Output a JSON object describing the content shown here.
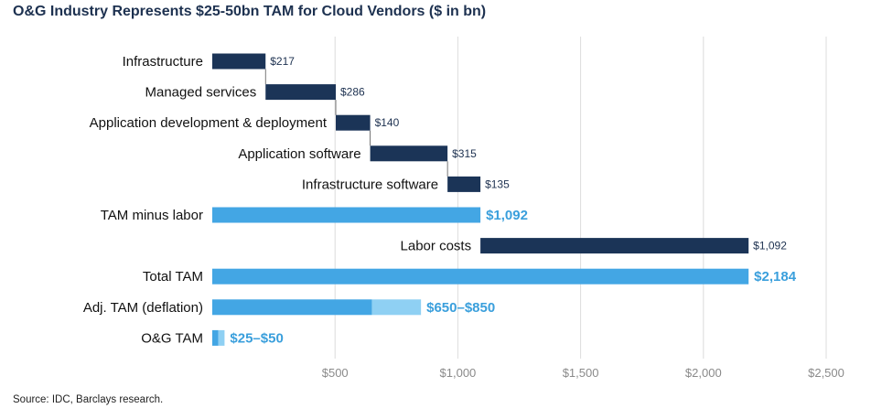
{
  "title": "O&G Industry Represents $25-50bn TAM for Cloud Vendors ($ in bn)",
  "source": "Source: IDC, Barclays research.",
  "colors": {
    "dark": "#1b3457",
    "light": "#43a6e4",
    "lighter": "#8fd0f3",
    "grid": "#dcdcdc"
  },
  "chart_data": {
    "type": "bar",
    "subtype": "waterfall-horizontal",
    "title": "O&G Industry Represents $25-50bn TAM for Cloud Vendors ($ in bn)",
    "xlabel": "",
    "ylabel": "",
    "xlim": [
      0,
      2500
    ],
    "grid": true,
    "x_ticks": [
      {
        "value": 500,
        "label": "$500"
      },
      {
        "value": 1000,
        "label": "$1,000"
      },
      {
        "value": 1500,
        "label": "$1,500"
      },
      {
        "value": 2000,
        "label": "$2,000"
      },
      {
        "value": 2500,
        "label": "$2,500"
      }
    ],
    "categories": [
      {
        "label": "Infrastructure",
        "start": 0,
        "end": 217,
        "color": "dark",
        "value_label": "$217",
        "label_style": "small"
      },
      {
        "label": "Managed services",
        "start": 217,
        "end": 503,
        "color": "dark",
        "value_label": "$286",
        "label_style": "small"
      },
      {
        "label": "Application development & deployment",
        "start": 503,
        "end": 643,
        "color": "dark",
        "value_label": "$140",
        "label_style": "small"
      },
      {
        "label": "Application software",
        "start": 643,
        "end": 958,
        "color": "dark",
        "value_label": "$315",
        "label_style": "small"
      },
      {
        "label": "Infrastructure software",
        "start": 958,
        "end": 1092,
        "color": "dark",
        "value_label": "$135",
        "label_style": "small"
      },
      {
        "label": "TAM minus labor",
        "start": 0,
        "end": 1092,
        "color": "light",
        "value_label": "$1,092",
        "label_style": "big"
      },
      {
        "label": "Labor costs",
        "start": 1092,
        "end": 2184,
        "color": "dark",
        "value_label": "$1,092",
        "label_style": "small"
      },
      {
        "label": "Total TAM",
        "start": 0,
        "end": 2184,
        "color": "light",
        "value_label": "$2,184",
        "label_style": "big"
      },
      {
        "label": "Adj. TAM (deflation)",
        "start": 0,
        "end": 650,
        "extra_end": 850,
        "color": "light",
        "value_label": "$650–$850",
        "label_style": "big"
      },
      {
        "label": "O&G TAM",
        "start": 0,
        "end": 25,
        "extra_end": 50,
        "color": "light",
        "value_label": "$25–$50",
        "label_style": "big"
      }
    ]
  }
}
